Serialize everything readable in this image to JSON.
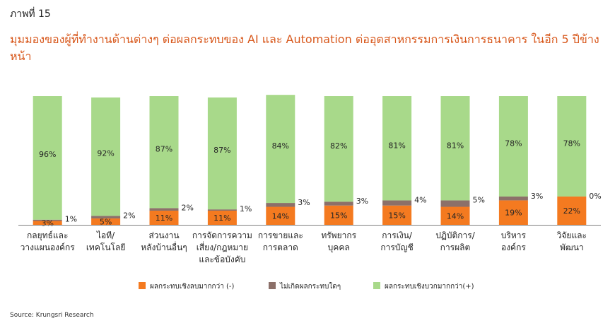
{
  "figure_label": "ภาพที่ 15",
  "title": "มุมมองของผู้ที่ทำงานด้านต่างๆ ต่อผลกระทบของ AI และ Automation ต่ออุตสาหกรรมการเงินการธนาคาร ในอีก 5 ปีข้างหน้า",
  "source": "Source: Krungsri Research",
  "colors": {
    "negative": "#f47a20",
    "no_impact": "#8c7069",
    "positive": "#a8d98a",
    "title": "#d8581c"
  },
  "chart_data": {
    "type": "bar",
    "stacked": true,
    "title": "",
    "xlabel": "",
    "ylabel": "",
    "ylim": [
      0,
      100
    ],
    "grid": false,
    "legend_position": "bottom",
    "categories": [
      [
        "กลยุทธ์และ",
        "วางแผนองค์กร"
      ],
      [
        "ไอที/",
        "เทคโนโลยี"
      ],
      [
        "ส่วนงาน",
        "หลังบ้านอื่นๆ"
      ],
      [
        "การจัดการความ",
        "เสี่ยง/กฎหมาย",
        "และข้อบังคับ"
      ],
      [
        "การขายและ",
        "การตลาด"
      ],
      [
        "ทรัพยากร",
        "บุคคล"
      ],
      [
        "การเงิน/",
        "การบัญชี"
      ],
      [
        "ปฏิบัติการ/",
        "การผลิต"
      ],
      [
        "บริหาร",
        "องค์กร"
      ],
      [
        "วิจัยและ",
        "พัฒนา"
      ]
    ],
    "series": [
      {
        "name": "ผลกระทบเชิงลบมากกว่า (-)",
        "color": "#f47a20",
        "values": [
          3,
          5,
          11,
          11,
          14,
          15,
          15,
          14,
          19,
          22
        ],
        "labels": [
          "3%",
          "5%",
          "11%",
          "11%",
          "14%",
          "15%",
          "15%",
          "14%",
          "19%",
          "22%"
        ]
      },
      {
        "name": "ไม่เกิดผลกระทบใดๆ",
        "color": "#8c7069",
        "values": [
          1,
          2,
          2,
          1,
          3,
          3,
          4,
          5,
          3,
          0
        ],
        "labels": [
          "1%",
          "2%",
          "2%",
          "1%",
          "3%",
          "3%",
          "4%",
          "5%",
          "3%",
          "0%"
        ]
      },
      {
        "name": "ผลกระทบเชิงบวกมากกว่า(+)",
        "color": "#a8d98a",
        "values": [
          96,
          92,
          87,
          87,
          84,
          82,
          81,
          81,
          78,
          78
        ],
        "labels": [
          "96%",
          "92%",
          "87%",
          "87%",
          "84%",
          "82%",
          "81%",
          "81%",
          "78%",
          "78%"
        ]
      }
    ]
  }
}
